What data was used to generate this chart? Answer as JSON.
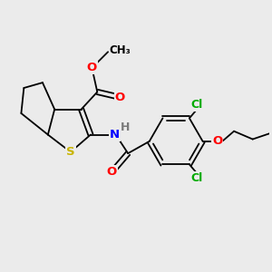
{
  "background_color": "#ebebeb",
  "bond_color": "#000000",
  "atoms": {
    "S": {
      "color": "#c8b400",
      "fontsize": 9.5
    },
    "O": {
      "color": "#ff0000",
      "fontsize": 9.5
    },
    "N": {
      "color": "#0000ff",
      "fontsize": 9.5
    },
    "Cl": {
      "color": "#00aa00",
      "fontsize": 9.0
    },
    "H": {
      "color": "#7a7a7a",
      "fontsize": 9.0
    }
  },
  "figsize": [
    3.0,
    3.0
  ],
  "dpi": 100,
  "lw": 1.3
}
